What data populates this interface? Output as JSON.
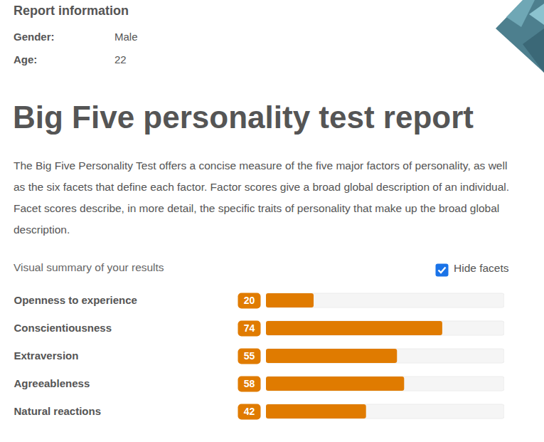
{
  "header": {
    "title": "Report information",
    "fields": [
      {
        "label": "Gender:",
        "value": "Male"
      },
      {
        "label": "Age:",
        "value": 22
      }
    ]
  },
  "title": "Big Five personality test report",
  "description": "The Big Five Personality Test offers a concise measure of the five major factors of personality, as well as the six facets that define each factor. Factor scores give a broad global description of an individual. Facet scores describe, in more detail, the specific traits of personality that make up the broad global description.",
  "summary": {
    "label": "Visual summary of your results",
    "checkbox": {
      "label": "Hide facets",
      "checked": true
    }
  },
  "chart_data": {
    "type": "bar",
    "orientation": "horizontal",
    "categories": [
      "Openness to experience",
      "Conscientiousness",
      "Extraversion",
      "Agreeableness",
      "Natural reactions"
    ],
    "values": [
      20,
      74,
      55,
      58,
      42
    ],
    "color": "#e07b00",
    "xlim": [
      0,
      100
    ],
    "data_labels": true,
    "tick_labels": "y"
  }
}
